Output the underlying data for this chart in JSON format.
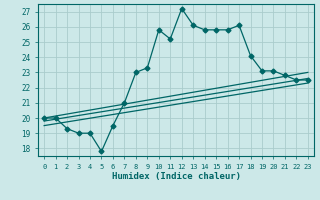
{
  "xlabel": "Humidex (Indice chaleur)",
  "ylabel": "",
  "xlim": [
    -0.5,
    23.5
  ],
  "ylim": [
    17.5,
    27.5
  ],
  "yticks": [
    18,
    19,
    20,
    21,
    22,
    23,
    24,
    25,
    26,
    27
  ],
  "xticks": [
    0,
    1,
    2,
    3,
    4,
    5,
    6,
    7,
    8,
    9,
    10,
    11,
    12,
    13,
    14,
    15,
    16,
    17,
    18,
    19,
    20,
    21,
    22,
    23
  ],
  "background_color": "#cce8e8",
  "grid_color": "#aacccc",
  "line_color": "#006666",
  "series": [
    {
      "x": [
        0,
        1,
        2,
        3,
        4,
        5,
        6,
        7,
        8,
        9,
        10,
        11,
        12,
        13,
        14,
        15,
        16,
        17,
        18,
        19,
        20,
        21,
        22,
        23
      ],
      "y": [
        20.0,
        20.0,
        19.3,
        19.0,
        19.0,
        17.8,
        19.5,
        21.0,
        23.0,
        23.3,
        25.8,
        25.2,
        27.2,
        26.1,
        25.8,
        25.8,
        25.8,
        26.1,
        24.1,
        23.1,
        23.1,
        22.8,
        22.5,
        22.5
      ],
      "marker": "D",
      "markersize": 2.5,
      "linewidth": 0.9
    },
    {
      "x": [
        0,
        23
      ],
      "y": [
        20.0,
        23.0
      ],
      "marker": null,
      "linewidth": 0.9
    },
    {
      "x": [
        0,
        23
      ],
      "y": [
        19.5,
        22.3
      ],
      "marker": null,
      "linewidth": 0.9
    },
    {
      "x": [
        0,
        23
      ],
      "y": [
        19.8,
        22.6
      ],
      "marker": null,
      "linewidth": 0.9
    }
  ]
}
